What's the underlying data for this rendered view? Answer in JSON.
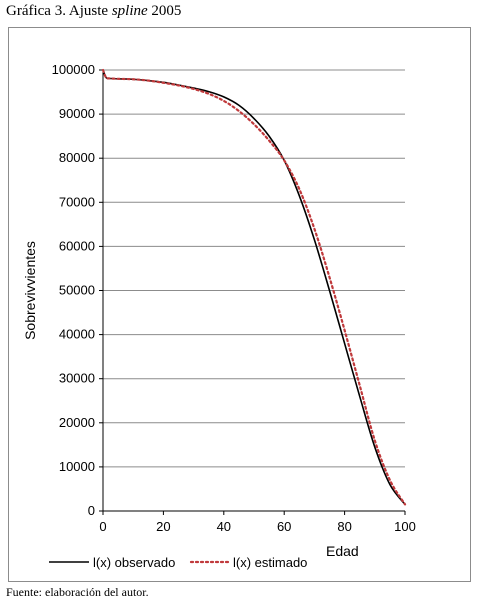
{
  "caption": {
    "prefix": "Gráfica 3. Ajuste ",
    "italic": "spline",
    "suffix": " 2005"
  },
  "source": "Fuente: elaboración del autor.",
  "colors": {
    "observed": "#000000",
    "estimated": "#c0393b",
    "grid": "#8c8c8c",
    "axis": "#000000"
  },
  "chart_data": {
    "type": "line",
    "title": "",
    "xlabel": "Edad",
    "ylabel": "Sobrevivvientes",
    "xlim": [
      0,
      100
    ],
    "ylim": [
      0,
      100000
    ],
    "xticks": [
      0,
      20,
      40,
      60,
      80,
      100
    ],
    "yticks": [
      0,
      10000,
      20000,
      30000,
      40000,
      50000,
      60000,
      70000,
      80000,
      90000,
      100000
    ],
    "grid": "horizontal",
    "legend_position": "bottom",
    "series": [
      {
        "name": "l(x) observado",
        "style": "solid",
        "x": [
          0,
          1,
          2,
          5,
          10,
          15,
          20,
          25,
          30,
          35,
          40,
          45,
          50,
          55,
          60,
          65,
          70,
          75,
          80,
          85,
          90,
          95,
          100
        ],
        "y": [
          100000,
          98300,
          98100,
          98000,
          97900,
          97600,
          97200,
          96600,
          95900,
          95100,
          93900,
          92000,
          89000,
          85000,
          79500,
          71500,
          61500,
          50000,
          38000,
          26000,
          14500,
          6000,
          1500
        ]
      },
      {
        "name": "l(x) estimado",
        "style": "dotted",
        "x": [
          0,
          1,
          2,
          5,
          10,
          15,
          20,
          25,
          30,
          35,
          40,
          45,
          50,
          55,
          60,
          65,
          70,
          75,
          80,
          85,
          90,
          95,
          100
        ],
        "y": [
          100000,
          98300,
          98100,
          98000,
          97900,
          97600,
          97100,
          96500,
          95700,
          94600,
          93000,
          90700,
          87700,
          84000,
          79500,
          73000,
          64000,
          53000,
          41000,
          28500,
          16000,
          7000,
          1500
        ]
      }
    ]
  }
}
